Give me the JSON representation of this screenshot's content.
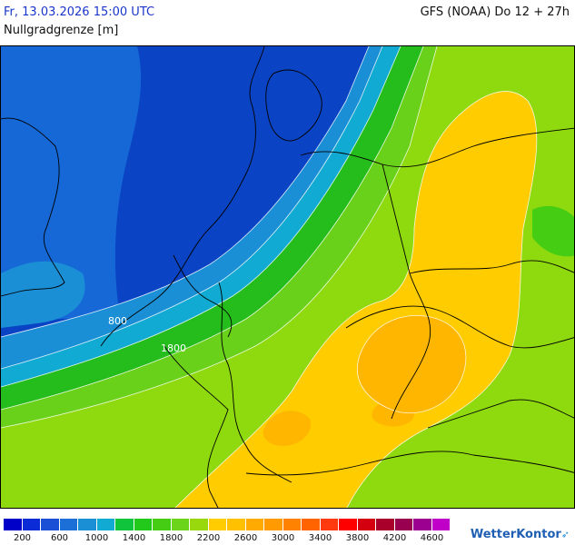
{
  "header": {
    "date": "Fr, 13.03.2026 15:00 UTC",
    "model": "GFS (NOAA) Do 12 + 27h",
    "parameter": "Nullgradgrenze [m]"
  },
  "map": {
    "contour_labels": [
      "800",
      "1800"
    ],
    "zone_colors": {
      "low": "#0a44c4",
      "mid": "#1b8fd6",
      "green": "#25bd1c",
      "lightgreen": "#6ad11a",
      "yellowgreen": "#8fd90f",
      "yellow": "#ffcc00",
      "orange": "#ffb600"
    }
  },
  "legend": {
    "colors": [
      "#0000c8",
      "#0a2bd6",
      "#1a4fd6",
      "#1b6fd6",
      "#1b8fd6",
      "#10aad2",
      "#10c43c",
      "#22c81a",
      "#45cd14",
      "#6cd41a",
      "#9ad80e",
      "#ffcc00",
      "#ffc000",
      "#ffaa00",
      "#ff9a00",
      "#ff8200",
      "#ff6400",
      "#ff3a10",
      "#ff0000",
      "#d40010",
      "#a8002a",
      "#9a0050",
      "#9c0090",
      "#c000c8"
    ],
    "ticks": [
      "200",
      "600",
      "1000",
      "1400",
      "1800",
      "2200",
      "2600",
      "3000",
      "3400",
      "3800",
      "4200",
      "4600"
    ]
  },
  "branding": {
    "logo": "WetterKontor"
  }
}
